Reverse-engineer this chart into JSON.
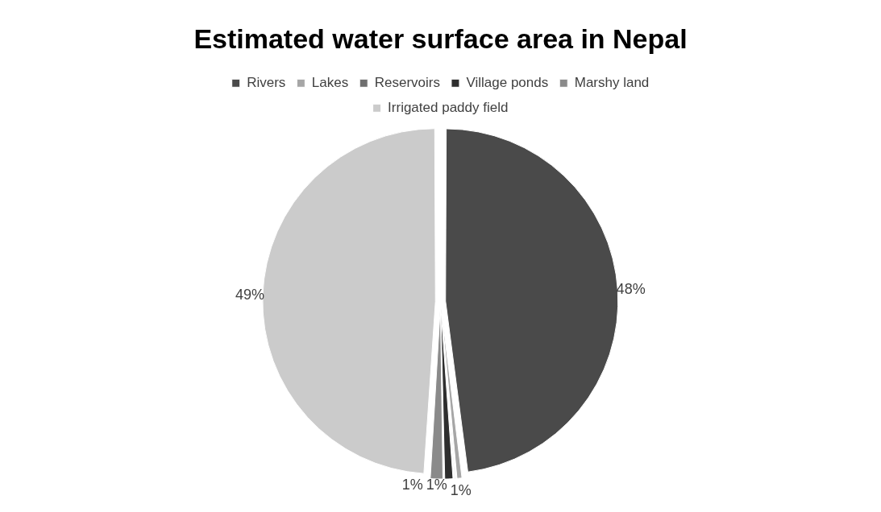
{
  "chart_data": {
    "type": "pie",
    "title": "Estimated water surface area in Nepal",
    "categories": [
      "Rivers",
      "Lakes",
      "Reservoirs",
      "Village ponds",
      "Marshy land",
      "Irrigated paddy field"
    ],
    "values": [
      48,
      0.6,
      0.2,
      0.9,
      1.3,
      49
    ],
    "value_labels": [
      "48%",
      "1%",
      null,
      "1%",
      "1%",
      "49%"
    ],
    "colors": [
      "#4a4a4a",
      "#a6a6a6",
      "#6f6f6f",
      "#2e2e2e",
      "#8a8a8a",
      "#cbcbcb"
    ],
    "legend": "top"
  }
}
